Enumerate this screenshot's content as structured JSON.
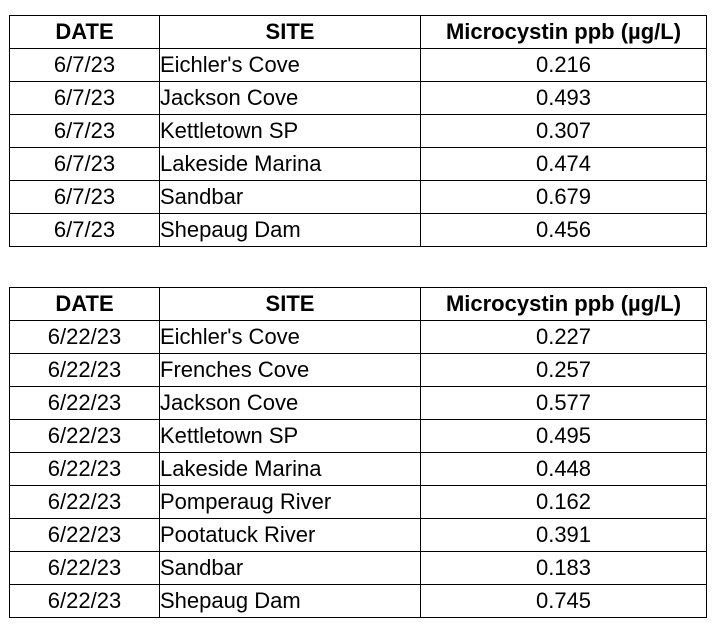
{
  "headers": {
    "date": "DATE",
    "site": "SITE",
    "value": "Microcystin ppb (µg/L)"
  },
  "tables": [
    {
      "rows": [
        {
          "date": "6/7/23",
          "site": "Eichler's Cove",
          "value": "0.216"
        },
        {
          "date": "6/7/23",
          "site": "Jackson Cove",
          "value": "0.493"
        },
        {
          "date": "6/7/23",
          "site": "Kettletown SP",
          "value": "0.307"
        },
        {
          "date": "6/7/23",
          "site": "Lakeside Marina",
          "value": "0.474"
        },
        {
          "date": "6/7/23",
          "site": "Sandbar",
          "value": "0.679"
        },
        {
          "date": "6/7/23",
          "site": "Shepaug Dam",
          "value": "0.456"
        }
      ]
    },
    {
      "rows": [
        {
          "date": "6/22/23",
          "site": "Eichler's Cove",
          "value": "0.227"
        },
        {
          "date": "6/22/23",
          "site": "Frenches Cove",
          "value": "0.257"
        },
        {
          "date": "6/22/23",
          "site": "Jackson Cove",
          "value": "0.577"
        },
        {
          "date": "6/22/23",
          "site": "Kettletown SP",
          "value": "0.495"
        },
        {
          "date": "6/22/23",
          "site": "Lakeside Marina",
          "value": "0.448"
        },
        {
          "date": "6/22/23",
          "site": "Pomperaug River",
          "value": "0.162"
        },
        {
          "date": "6/22/23",
          "site": "Pootatuck River",
          "value": "0.391"
        },
        {
          "date": "6/22/23",
          "site": "Sandbar",
          "value": "0.183"
        },
        {
          "date": "6/22/23",
          "site": "Shepaug Dam",
          "value": "0.745"
        }
      ]
    }
  ]
}
